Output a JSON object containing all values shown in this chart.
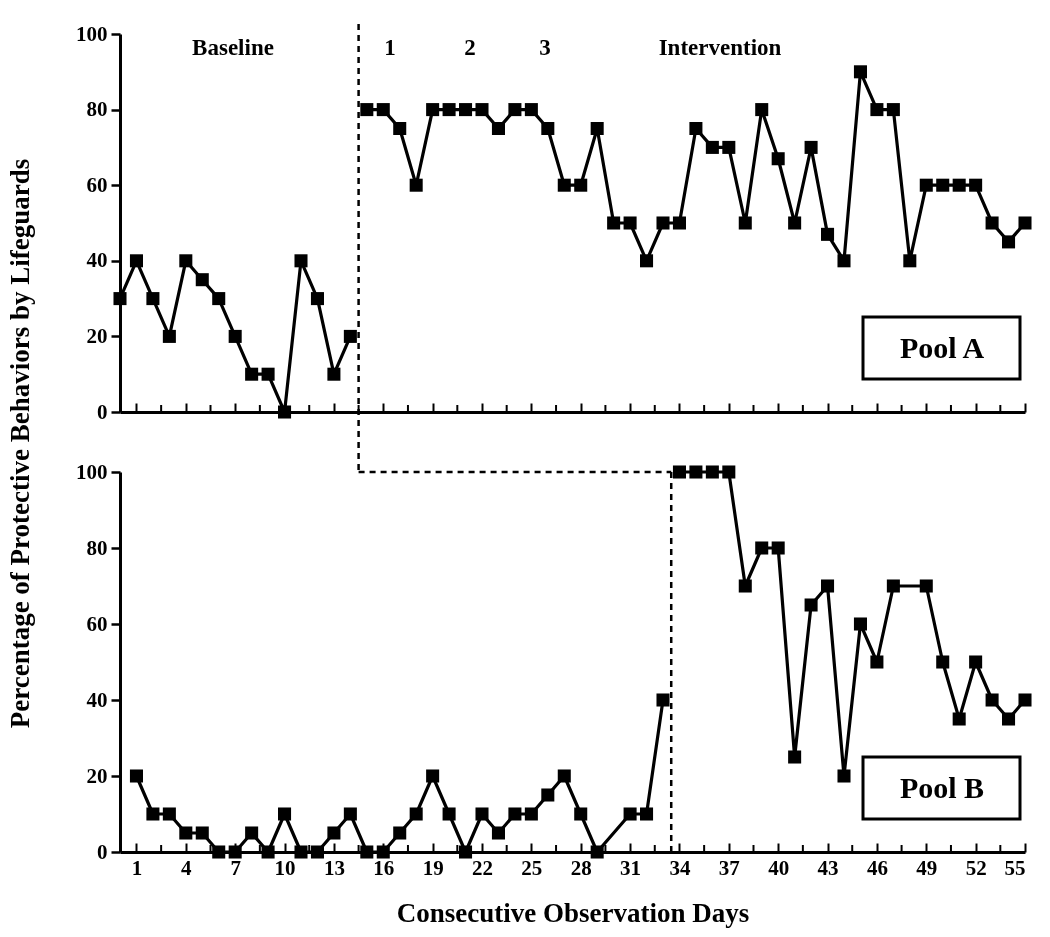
{
  "chart_data": [
    {
      "type": "line",
      "ylabel": "Percentage of Protective Behaviors by Lifeguards",
      "marker": "square",
      "line_style": "solid",
      "grid": false,
      "tick_labels": "y",
      "xlim": [
        0,
        55
      ],
      "ylim": [
        0,
        100
      ],
      "yticks": [
        0,
        20,
        40,
        60,
        80,
        100
      ],
      "xticks": [
        1,
        {
          "value": 2.5,
          "label": null
        },
        4,
        {
          "value": 5.5,
          "label": null
        },
        7,
        {
          "value": 8.5,
          "label": null
        },
        10,
        {
          "value": 11.5,
          "label": null
        },
        13,
        {
          "value": 14.5,
          "label": null
        },
        16,
        {
          "value": 17.5,
          "label": null
        },
        19,
        {
          "value": 20.5,
          "label": null
        },
        22,
        {
          "value": 23.5,
          "label": null
        },
        25,
        {
          "value": 26.5,
          "label": null
        },
        28,
        {
          "value": 29.5,
          "label": null
        },
        31,
        {
          "value": 32.5,
          "label": null
        },
        34,
        {
          "value": 35.5,
          "label": null
        },
        37,
        {
          "value": 38.5,
          "label": null
        },
        40,
        {
          "value": 41.5,
          "label": null
        },
        43,
        {
          "value": 44.5,
          "label": null
        },
        46,
        {
          "value": 47.5,
          "label": null
        },
        49,
        {
          "value": 50.5,
          "label": null
        },
        52,
        {
          "value": 53.5,
          "label": null
        },
        55
      ],
      "series": [
        {
          "color": "#000000",
          "x": [
            0,
            1,
            2,
            3,
            4,
            5,
            6,
            7,
            8,
            9,
            10,
            11,
            12,
            13,
            14
          ],
          "values": [
            30,
            40,
            30,
            20,
            40,
            35,
            30,
            20,
            10,
            10,
            0,
            40,
            30,
            10,
            20
          ]
        },
        {
          "color": "#000000",
          "x": [
            15,
            16,
            17,
            18,
            19,
            20,
            21,
            22,
            23,
            24,
            25,
            26,
            27,
            28,
            29,
            30,
            31,
            32,
            33,
            34,
            35,
            36,
            37,
            38,
            39,
            40,
            41,
            42,
            43,
            44,
            45,
            46,
            47,
            48,
            49,
            50,
            51,
            52,
            53,
            54,
            55
          ],
          "values": [
            80,
            80,
            75,
            60,
            80,
            80,
            80,
            80,
            75,
            80,
            80,
            75,
            60,
            60,
            75,
            50,
            50,
            40,
            50,
            50,
            75,
            70,
            70,
            50,
            80,
            67,
            50,
            70,
            47,
            40,
            90,
            80,
            80,
            40,
            60,
            60,
            60,
            60,
            50,
            45,
            50
          ]
        }
      ],
      "ref_lines": [
        {
          "axis": "x",
          "value": 14.5,
          "line_style": "dashed"
        }
      ],
      "annotations": [
        "Baseline",
        "1",
        "2",
        "3",
        "Intervention",
        "Pool A"
      ]
    },
    {
      "type": "line",
      "xlabel": "Consecutive Observation Days",
      "marker": "square",
      "line_style": "solid",
      "grid": false,
      "xlim": [
        0,
        55
      ],
      "ylim": [
        0,
        100
      ],
      "yticks": [
        0,
        20,
        40,
        60,
        80,
        100
      ],
      "xticks": [
        1,
        {
          "value": 2.5,
          "label": null
        },
        4,
        {
          "value": 5.5,
          "label": null
        },
        7,
        {
          "value": 8.5,
          "label": null
        },
        10,
        {
          "value": 11.5,
          "label": null
        },
        13,
        {
          "value": 14.5,
          "label": null
        },
        16,
        {
          "value": 17.5,
          "label": null
        },
        19,
        {
          "value": 20.5,
          "label": null
        },
        22,
        {
          "value": 23.5,
          "label": null
        },
        25,
        {
          "value": 26.5,
          "label": null
        },
        28,
        {
          "value": 29.5,
          "label": null
        },
        31,
        {
          "value": 32.5,
          "label": null
        },
        34,
        {
          "value": 35.5,
          "label": null
        },
        37,
        {
          "value": 38.5,
          "label": null
        },
        40,
        {
          "value": 41.5,
          "label": null
        },
        43,
        {
          "value": 44.5,
          "label": null
        },
        46,
        {
          "value": 47.5,
          "label": null
        },
        49,
        {
          "value": 50.5,
          "label": null
        },
        52,
        {
          "value": 53.5,
          "label": null
        },
        55
      ],
      "series": [
        {
          "color": "#000000",
          "x": [
            1,
            2,
            3,
            4,
            5,
            6,
            7,
            8,
            9,
            10,
            11,
            12,
            13,
            14,
            15,
            16,
            17,
            18,
            19,
            20,
            21,
            22,
            23,
            24,
            25,
            26,
            27,
            28,
            29,
            31,
            32,
            33
          ],
          "values": [
            20,
            10,
            10,
            5,
            5,
            0,
            0,
            5,
            0,
            10,
            0,
            0,
            5,
            10,
            0,
            0,
            5,
            10,
            20,
            10,
            0,
            10,
            5,
            10,
            10,
            15,
            20,
            10,
            0,
            10,
            10,
            40
          ]
        },
        {
          "color": "#000000",
          "x": [
            34,
            35,
            36,
            37,
            38,
            39,
            40,
            41,
            42,
            43,
            44,
            45,
            46,
            47,
            49,
            50,
            51,
            52,
            53,
            54,
            55
          ],
          "values": [
            100,
            100,
            100,
            100,
            70,
            80,
            80,
            25,
            65,
            70,
            20,
            60,
            50,
            70,
            70,
            50,
            35,
            50,
            40,
            35,
            40
          ]
        }
      ],
      "ref_lines": [
        {
          "axis": "x",
          "value": 33.5,
          "line_style": "dashed"
        }
      ],
      "annotations": [
        "Pool B"
      ]
    }
  ]
}
